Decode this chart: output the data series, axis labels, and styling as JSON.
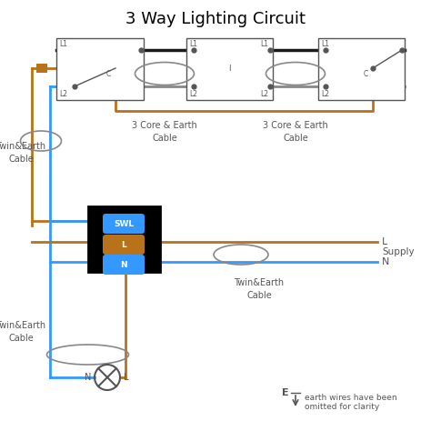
{
  "title": "3 Way Lighting Circuit",
  "title_fontsize": 13,
  "bg_color": "#ffffff",
  "brown": "#b8731a",
  "blue": "#3399ff",
  "black": "#1a1a1a",
  "gray": "#888888",
  "dark_gray": "#555555",
  "note_text1": "earth wires have been",
  "note_text2": "omitted for clarity",
  "cable_label_te": "Twin&Earth\nCable",
  "cable_label_3c": "3 Core & Earth\nCable",
  "supply_text": "Supply",
  "E_text": "E"
}
